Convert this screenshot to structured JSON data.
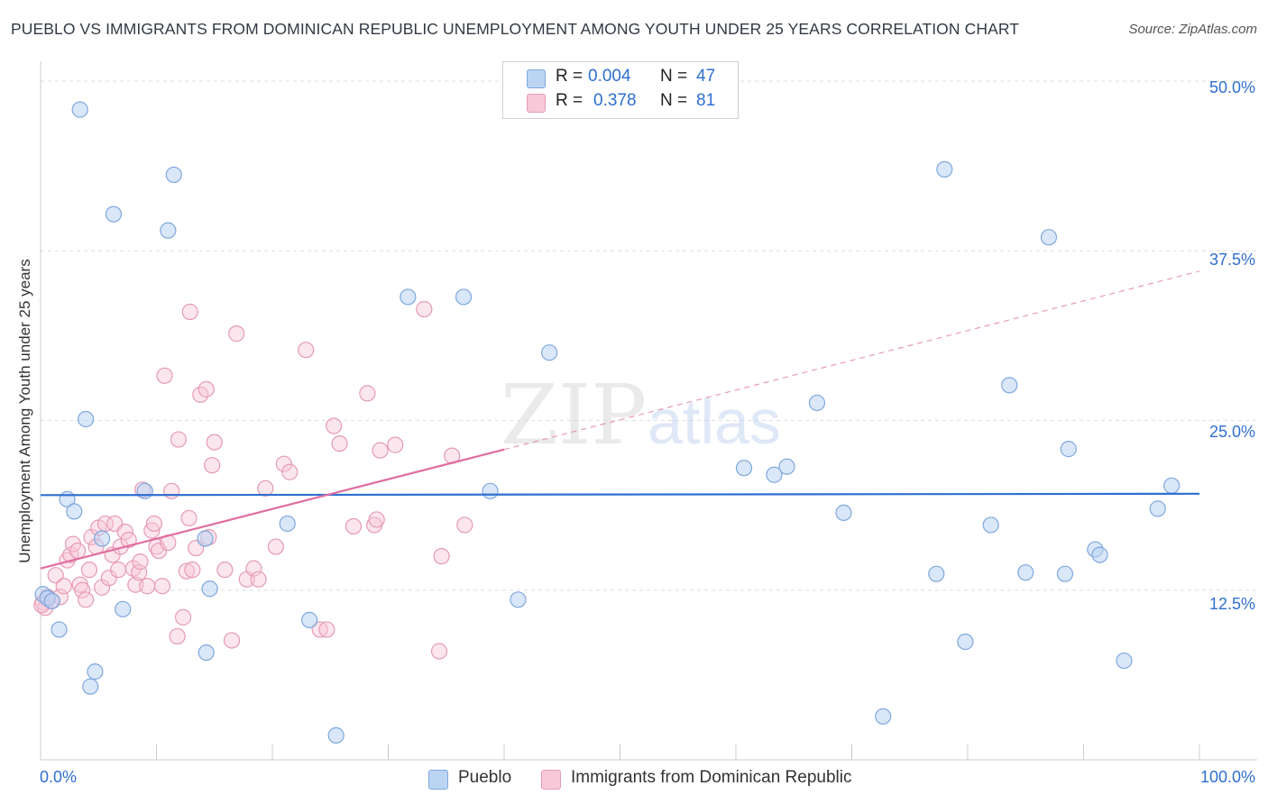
{
  "header": {
    "title": "PUEBLO VS IMMIGRANTS FROM DOMINICAN REPUBLIC UNEMPLOYMENT AMONG YOUTH UNDER 25 YEARS CORRELATION CHART",
    "source": "Source: ZipAtlas.com"
  },
  "watermark": {
    "zip": "ZIP",
    "atlas": "atlas"
  },
  "stats_legend": {
    "rows": [
      {
        "r_label": "R =",
        "r_value": "0.004",
        "n_label": "N =",
        "n_value": "47"
      },
      {
        "r_label": "R =",
        "r_value": "0.378",
        "n_label": "N =",
        "n_value": "81"
      }
    ]
  },
  "axis": {
    "ylabel": "Unemployment Among Youth under 25 years",
    "x_left": "0.0%",
    "x_right": "100.0%",
    "y_ticks": [
      "12.5%",
      "25.0%",
      "37.5%",
      "50.0%"
    ]
  },
  "colors": {
    "blue": "#2f6fd0",
    "blue_fill": "#bcd4f4",
    "pink": "#e06ea0",
    "pink_fill": "#f8c8d8"
  },
  "chart_data": {
    "type": "scatter",
    "title": "PUEBLO VS IMMIGRANTS FROM DOMINICAN REPUBLIC UNEMPLOYMENT AMONG YOUTH UNDER 25 YEARS CORRELATION CHART",
    "xlabel": "",
    "ylabel": "Unemployment Among Youth under 25 years",
    "xlim": [
      0,
      100
    ],
    "ylim": [
      0,
      50
    ],
    "x_ticks": [
      "0.0%",
      "100.0%"
    ],
    "y_ticks": [
      "12.5%",
      "25.0%",
      "37.5%",
      "50.0%"
    ],
    "grid": true,
    "legend": "bottom",
    "series": [
      {
        "name": "Pueblo",
        "color": "#7ea8dd",
        "trend": {
          "x": [
            0,
            100
          ],
          "y": [
            19.5,
            19.6
          ],
          "style": "solid"
        },
        "points": [
          {
            "x": 0.2,
            "y": 12.2
          },
          {
            "x": 0.6,
            "y": 11.9
          },
          {
            "x": 1.0,
            "y": 11.7
          },
          {
            "x": 1.6,
            "y": 9.6
          },
          {
            "x": 2.3,
            "y": 19.2
          },
          {
            "x": 2.9,
            "y": 18.3
          },
          {
            "x": 3.4,
            "y": 47.9
          },
          {
            "x": 3.9,
            "y": 25.1
          },
          {
            "x": 4.3,
            "y": 5.4
          },
          {
            "x": 4.7,
            "y": 6.5
          },
          {
            "x": 5.3,
            "y": 16.3
          },
          {
            "x": 6.3,
            "y": 40.2
          },
          {
            "x": 7.1,
            "y": 11.1
          },
          {
            "x": 9.0,
            "y": 19.8
          },
          {
            "x": 11.0,
            "y": 39.0
          },
          {
            "x": 11.5,
            "y": 43.1
          },
          {
            "x": 14.2,
            "y": 16.3
          },
          {
            "x": 14.3,
            "y": 7.9
          },
          {
            "x": 14.6,
            "y": 12.6
          },
          {
            "x": 21.3,
            "y": 17.4
          },
          {
            "x": 23.2,
            "y": 10.3
          },
          {
            "x": 25.5,
            "y": 1.8
          },
          {
            "x": 31.7,
            "y": 34.1
          },
          {
            "x": 36.5,
            "y": 34.1
          },
          {
            "x": 38.8,
            "y": 19.8
          },
          {
            "x": 41.2,
            "y": 11.8
          },
          {
            "x": 43.9,
            "y": 30.0
          },
          {
            "x": 60.7,
            "y": 21.5
          },
          {
            "x": 63.3,
            "y": 21.0
          },
          {
            "x": 64.4,
            "y": 21.6
          },
          {
            "x": 67.0,
            "y": 26.3
          },
          {
            "x": 69.3,
            "y": 18.2
          },
          {
            "x": 72.7,
            "y": 3.2
          },
          {
            "x": 77.3,
            "y": 13.7
          },
          {
            "x": 78.0,
            "y": 43.5
          },
          {
            "x": 79.8,
            "y": 8.7
          },
          {
            "x": 82.0,
            "y": 17.3
          },
          {
            "x": 83.6,
            "y": 27.6
          },
          {
            "x": 85.0,
            "y": 13.8
          },
          {
            "x": 87.0,
            "y": 38.5
          },
          {
            "x": 88.4,
            "y": 13.7
          },
          {
            "x": 88.7,
            "y": 22.9
          },
          {
            "x": 91.0,
            "y": 15.5
          },
          {
            "x": 91.4,
            "y": 15.1
          },
          {
            "x": 93.5,
            "y": 7.3
          },
          {
            "x": 96.4,
            "y": 18.5
          },
          {
            "x": 97.6,
            "y": 20.2
          }
        ]
      },
      {
        "name": "Immigrants from Dominican Republic",
        "color": "#e59ab5",
        "trend": {
          "x": [
            0,
            100
          ],
          "y": [
            14.1,
            36.0
          ],
          "style": "solid-then-dashed",
          "solid_until_x": 40
        },
        "points": [
          {
            "x": 0.2,
            "y": 11.6
          },
          {
            "x": 0.4,
            "y": 11.2
          },
          {
            "x": 0.6,
            "y": 12.0
          },
          {
            "x": 0.9,
            "y": 11.7
          },
          {
            "x": 1.3,
            "y": 13.6
          },
          {
            "x": 1.7,
            "y": 12.0
          },
          {
            "x": 2.0,
            "y": 12.8
          },
          {
            "x": 2.3,
            "y": 14.7
          },
          {
            "x": 2.6,
            "y": 15.1
          },
          {
            "x": 2.8,
            "y": 15.9
          },
          {
            "x": 3.2,
            "y": 15.4
          },
          {
            "x": 3.4,
            "y": 12.9
          },
          {
            "x": 3.6,
            "y": 12.5
          },
          {
            "x": 3.9,
            "y": 11.8
          },
          {
            "x": 4.2,
            "y": 14.0
          },
          {
            "x": 4.4,
            "y": 16.4
          },
          {
            "x": 4.8,
            "y": 15.7
          },
          {
            "x": 5.0,
            "y": 17.1
          },
          {
            "x": 5.3,
            "y": 12.7
          },
          {
            "x": 5.6,
            "y": 17.4
          },
          {
            "x": 5.9,
            "y": 13.4
          },
          {
            "x": 6.2,
            "y": 15.1
          },
          {
            "x": 6.4,
            "y": 17.4
          },
          {
            "x": 6.7,
            "y": 14.0
          },
          {
            "x": 6.9,
            "y": 15.7
          },
          {
            "x": 7.3,
            "y": 16.8
          },
          {
            "x": 7.6,
            "y": 16.2
          },
          {
            "x": 8.0,
            "y": 14.1
          },
          {
            "x": 8.2,
            "y": 12.9
          },
          {
            "x": 8.5,
            "y": 13.8
          },
          {
            "x": 8.6,
            "y": 14.6
          },
          {
            "x": 8.8,
            "y": 19.9
          },
          {
            "x": 9.2,
            "y": 12.8
          },
          {
            "x": 9.6,
            "y": 16.9
          },
          {
            "x": 9.8,
            "y": 17.4
          },
          {
            "x": 10.0,
            "y": 15.7
          },
          {
            "x": 10.2,
            "y": 15.4
          },
          {
            "x": 10.5,
            "y": 12.8
          },
          {
            "x": 10.7,
            "y": 28.3
          },
          {
            "x": 11.0,
            "y": 16.0
          },
          {
            "x": 11.3,
            "y": 19.8
          },
          {
            "x": 11.8,
            "y": 9.1
          },
          {
            "x": 11.9,
            "y": 23.6
          },
          {
            "x": 12.3,
            "y": 10.5
          },
          {
            "x": 12.6,
            "y": 13.9
          },
          {
            "x": 12.8,
            "y": 17.8
          },
          {
            "x": 12.9,
            "y": 33.0
          },
          {
            "x": 13.1,
            "y": 14.0
          },
          {
            "x": 13.4,
            "y": 15.6
          },
          {
            "x": 13.8,
            "y": 26.9
          },
          {
            "x": 14.3,
            "y": 27.3
          },
          {
            "x": 14.5,
            "y": 16.4
          },
          {
            "x": 14.8,
            "y": 21.7
          },
          {
            "x": 15.0,
            "y": 23.4
          },
          {
            "x": 15.9,
            "y": 14.0
          },
          {
            "x": 16.5,
            "y": 8.8
          },
          {
            "x": 16.9,
            "y": 31.4
          },
          {
            "x": 17.8,
            "y": 13.3
          },
          {
            "x": 18.4,
            "y": 14.1
          },
          {
            "x": 18.8,
            "y": 13.3
          },
          {
            "x": 19.4,
            "y": 20.0
          },
          {
            "x": 20.3,
            "y": 15.7
          },
          {
            "x": 21.0,
            "y": 21.8
          },
          {
            "x": 21.5,
            "y": 21.2
          },
          {
            "x": 22.9,
            "y": 30.2
          },
          {
            "x": 24.1,
            "y": 9.6
          },
          {
            "x": 24.7,
            "y": 9.6
          },
          {
            "x": 25.3,
            "y": 24.6
          },
          {
            "x": 25.8,
            "y": 23.3
          },
          {
            "x": 27.0,
            "y": 17.2
          },
          {
            "x": 28.2,
            "y": 27.0
          },
          {
            "x": 28.8,
            "y": 17.3
          },
          {
            "x": 29.0,
            "y": 17.7
          },
          {
            "x": 29.3,
            "y": 22.8
          },
          {
            "x": 30.6,
            "y": 23.2
          },
          {
            "x": 33.1,
            "y": 33.2
          },
          {
            "x": 34.4,
            "y": 8.0
          },
          {
            "x": 34.6,
            "y": 15.0
          },
          {
            "x": 35.5,
            "y": 22.4
          },
          {
            "x": 36.6,
            "y": 17.3
          },
          {
            "x": 0.1,
            "y": 11.4
          }
        ]
      }
    ]
  }
}
